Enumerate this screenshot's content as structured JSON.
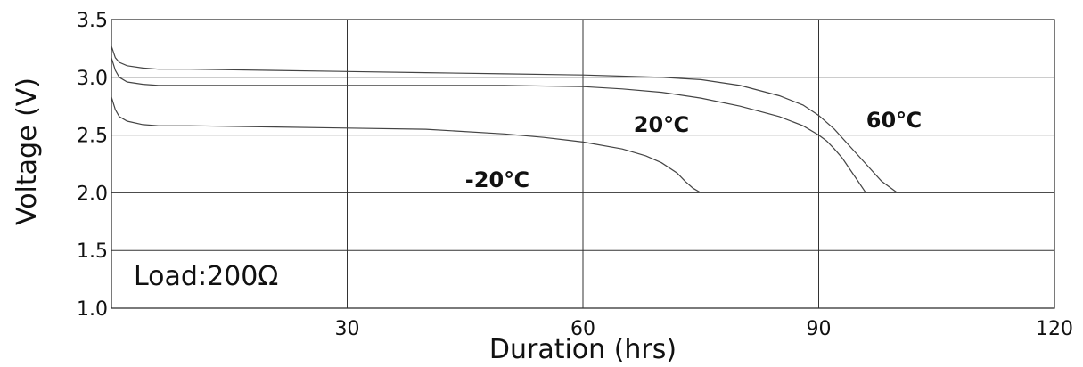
{
  "chart_data": {
    "type": "line",
    "title": "",
    "xlabel": "Duration (hrs)",
    "ylabel": "Voltage (V)",
    "xlim": [
      0,
      120
    ],
    "ylim": [
      1.0,
      3.5
    ],
    "xticks": [
      30,
      60,
      90,
      120
    ],
    "xtick_labels": [
      "30",
      "60",
      "90",
      "120"
    ],
    "yticks": [
      1.0,
      1.5,
      2.0,
      2.5,
      3.0,
      3.5
    ],
    "ytick_labels": [
      "1.0",
      "1.5",
      "2.0",
      "2.5",
      "3.0",
      "3.5"
    ],
    "grid": true,
    "annotation": "Load:200Ω",
    "series": [
      {
        "name": "60℃",
        "x": [
          0,
          0.5,
          1,
          2,
          4,
          6,
          10,
          20,
          30,
          40,
          50,
          60,
          65,
          70,
          75,
          80,
          85,
          88,
          90,
          92,
          94,
          96,
          98,
          100
        ],
        "y": [
          3.27,
          3.17,
          3.13,
          3.1,
          3.08,
          3.07,
          3.07,
          3.06,
          3.05,
          3.04,
          3.03,
          3.02,
          3.01,
          3.0,
          2.98,
          2.93,
          2.84,
          2.76,
          2.67,
          2.55,
          2.4,
          2.25,
          2.1,
          2.0
        ]
      },
      {
        "name": "20℃",
        "x": [
          0,
          0.5,
          1,
          2,
          4,
          6,
          10,
          20,
          30,
          40,
          50,
          60,
          65,
          70,
          75,
          80,
          85,
          88,
          90,
          91,
          92,
          93,
          94,
          95,
          96
        ],
        "y": [
          3.17,
          3.06,
          3.0,
          2.96,
          2.94,
          2.93,
          2.93,
          2.93,
          2.93,
          2.93,
          2.93,
          2.92,
          2.9,
          2.87,
          2.82,
          2.75,
          2.66,
          2.58,
          2.5,
          2.45,
          2.38,
          2.3,
          2.2,
          2.1,
          2.0
        ]
      },
      {
        "name": "-20℃",
        "x": [
          0,
          0.5,
          1,
          2,
          4,
          6,
          10,
          20,
          30,
          40,
          50,
          55,
          60,
          65,
          68,
          70,
          72,
          73,
          74,
          75
        ],
        "y": [
          2.83,
          2.72,
          2.66,
          2.62,
          2.59,
          2.58,
          2.58,
          2.57,
          2.56,
          2.55,
          2.51,
          2.48,
          2.44,
          2.38,
          2.32,
          2.26,
          2.17,
          2.1,
          2.04,
          2.0
        ]
      }
    ]
  }
}
